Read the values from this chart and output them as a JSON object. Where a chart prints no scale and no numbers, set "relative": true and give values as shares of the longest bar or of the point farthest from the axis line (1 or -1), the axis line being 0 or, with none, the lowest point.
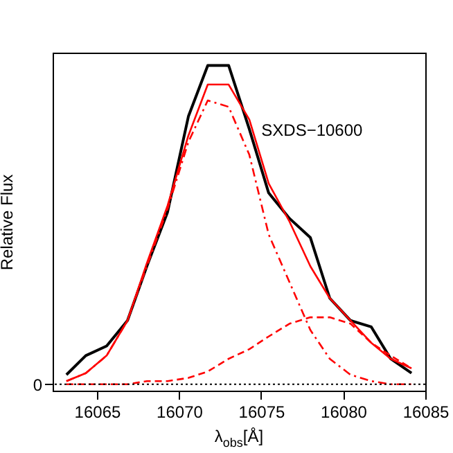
{
  "chart_data": {
    "type": "line",
    "relative": true,
    "xlabel": "λ$_{obs}$[Å]",
    "ylabel": "Relative Flux",
    "annotations": [
      "SXDS−10600"
    ],
    "x": [
      16063.14,
      16064.32,
      16065.59,
      16066.86,
      16068.04,
      16069.3,
      16070.57,
      16071.75,
      16073.02,
      16074.28,
      16075.46,
      16076.73,
      16078.0,
      16079.18,
      16080.44,
      16081.71,
      16082.89,
      16084.16
    ],
    "xlim": [
      16062.3,
      16085
    ],
    "xticks": [
      16065,
      16070,
      16075,
      16080,
      16085
    ],
    "series": [
      {
        "color": "#000000",
        "line_style": "solid",
        "values": [
          0.03,
          0.09,
          0.12,
          0.2,
          0.37,
          0.54,
          0.84,
          1.0,
          1.0,
          0.8,
          0.6,
          0.52,
          0.46,
          0.27,
          0.2,
          0.18,
          0.08,
          0.035
        ]
      },
      {
        "color": "#ff0000",
        "line_style": "solid",
        "values": [
          0.01,
          0.035,
          0.09,
          0.2,
          0.38,
          0.56,
          0.78,
          0.94,
          0.94,
          0.83,
          0.63,
          0.51,
          0.37,
          0.27,
          0.2,
          0.13,
          0.08,
          0.05
        ]
      },
      {
        "color": "#ff0000",
        "line_style": "dashdot",
        "values": [
          0.01,
          0.035,
          0.09,
          0.2,
          0.37,
          0.55,
          0.76,
          0.89,
          0.87,
          0.72,
          0.47,
          0.32,
          0.17,
          0.08,
          0.03,
          0.01,
          0.0,
          0.0
        ]
      },
      {
        "color": "#ff0000",
        "line_style": "dashed",
        "values": [
          0.0,
          0.0,
          0.0,
          0.0,
          0.01,
          0.01,
          0.02,
          0.04,
          0.08,
          0.11,
          0.15,
          0.19,
          0.21,
          0.21,
          0.19,
          0.13,
          0.09,
          0.05
        ]
      }
    ],
    "ref_lines": [
      {
        "axis": "y",
        "value": 0,
        "label": "0",
        "color": "#000000",
        "line_style": "dotted"
      }
    ],
    "grid": false
  }
}
